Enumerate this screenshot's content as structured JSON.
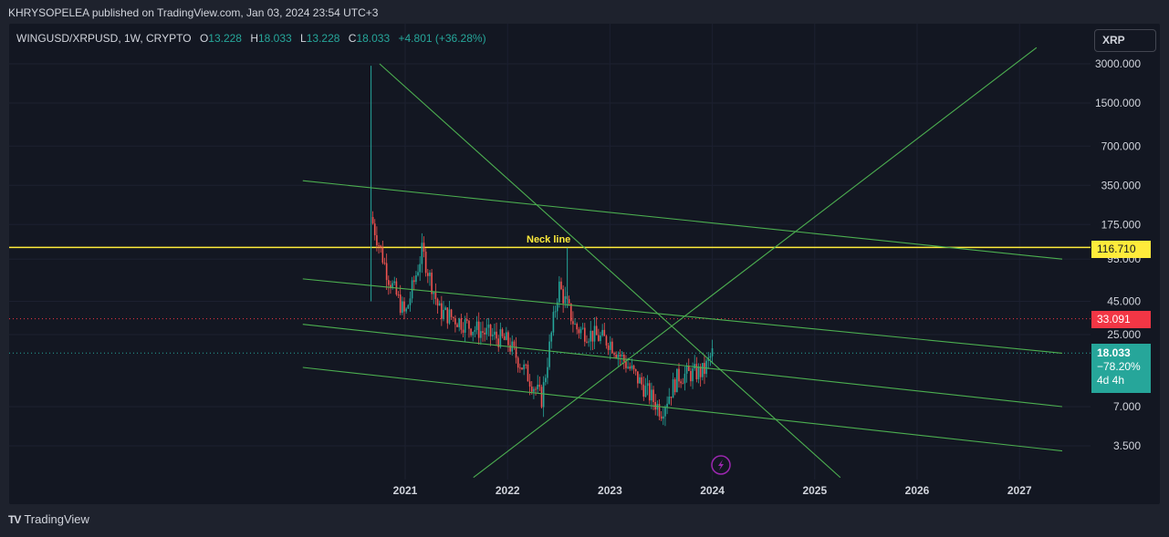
{
  "header": {
    "text": "KHRYSOPELEA published on TradingView.com, Jan 03, 2024 23:54 UTC+3"
  },
  "legend": {
    "symbol": "WINGUSD/XRPUSD, 1W, CRYPTO",
    "open_key": "O",
    "open": "13.228",
    "high_key": "H",
    "high": "18.033",
    "low_key": "L",
    "low": "13.228",
    "close_key": "C",
    "close": "18.033",
    "change": "+4.801 (+36.28%)"
  },
  "symbol_box": "XRP",
  "price_tags": {
    "neck": "116.710",
    "red": "33.091",
    "last_price": "18.033",
    "last_change": "−78.20%",
    "countdown": "4d 4h"
  },
  "annotation": {
    "neck_label": "Neck line"
  },
  "footer": {
    "brand": "TradingView",
    "logo": "TV"
  },
  "colors": {
    "up": "#26a69a",
    "down": "#ef5350",
    "channel": "#4caf50",
    "neck": "#ffeb3b",
    "red_level": "#f23645",
    "bg": "#131722"
  },
  "chart_data": {
    "type": "candlestick",
    "scale": "log",
    "title": "WINGUSD/XRPUSD, 1W, CRYPTO",
    "y_ticks": [
      "3000.000",
      "1500.000",
      "700.000",
      "350.000",
      "175.000",
      "95.000",
      "45.000",
      "25.000",
      "7.000",
      "3.500"
    ],
    "x_ticks": [
      "2021",
      "2022",
      "2023",
      "2024",
      "2025",
      "2026",
      "2027"
    ],
    "horizontal_levels": [
      {
        "value": 116.71,
        "style": "solid",
        "color": "#ffeb3b",
        "label": "Neck line"
      },
      {
        "value": 33.091,
        "style": "dotted",
        "color": "#f23645"
      },
      {
        "value": 18.033,
        "style": "dotted",
        "color": "#26a69a"
      }
    ],
    "trend_lines": [
      {
        "from": [
          "2020-01",
          380
        ],
        "to": [
          "2027-06",
          95
        ]
      },
      {
        "from": [
          "2020-01",
          67
        ],
        "to": [
          "2027-06",
          18
        ]
      },
      {
        "from": [
          "2020-01",
          30
        ],
        "to": [
          "2027-06",
          7
        ]
      },
      {
        "from": [
          "2020-01",
          14
        ],
        "to": [
          "2027-06",
          3.2
        ]
      },
      {
        "from": [
          "2020-10",
          3000
        ],
        "to": [
          "2025-04",
          2
        ]
      },
      {
        "from": [
          "2021-09",
          2
        ],
        "to": [
          "2027-03",
          4000
        ]
      }
    ],
    "key_points": [
      {
        "x": "2020-09",
        "value": 2900,
        "note": "launch wick"
      },
      {
        "x": "2020-09",
        "value": 240
      },
      {
        "x": "2021-02",
        "value": 110
      },
      {
        "x": "2022-05",
        "value": 8
      },
      {
        "x": "2022-08",
        "value": 110
      },
      {
        "x": "2023-07",
        "value": 6
      },
      {
        "x": "2024-01",
        "value": 18.033
      }
    ]
  }
}
